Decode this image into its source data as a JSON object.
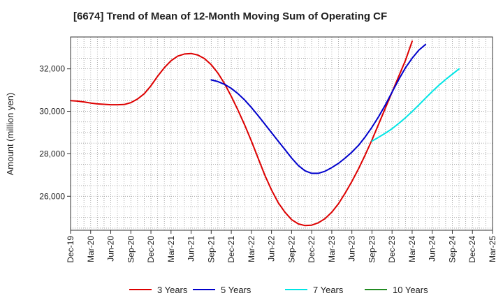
{
  "chart_data": {
    "type": "line",
    "title": "[6674]  Trend of Mean of 12-Month Moving Sum of Operating CF",
    "xlabel": "",
    "ylabel": "Amount (million yen)",
    "x_ticks": [
      "Dec-19",
      "Mar-20",
      "Jun-20",
      "Sep-20",
      "Dec-20",
      "Mar-21",
      "Jun-21",
      "Sep-21",
      "Dec-21",
      "Mar-22",
      "Jun-22",
      "Sep-22",
      "Dec-22",
      "Mar-23",
      "Jun-23",
      "Sep-23",
      "Dec-23",
      "Mar-24",
      "Jun-24",
      "Sep-24",
      "Dec-24",
      "Mar-25"
    ],
    "y_ticks": [
      26000,
      28000,
      30000,
      32000
    ],
    "y_tick_labels": [
      "26,000",
      "28,000",
      "30,000",
      "32,000"
    ],
    "ylim": [
      24400,
      33500
    ],
    "grid": true,
    "legend_position": "bottom",
    "series": [
      {
        "name": "3 Years",
        "color": "#dd0000",
        "start_index": 0,
        "values": [
          30500,
          30480,
          30440,
          30390,
          30350,
          30330,
          30310,
          30310,
          30320,
          30410,
          30580,
          30830,
          31200,
          31650,
          32050,
          32380,
          32600,
          32700,
          32720,
          32650,
          32480,
          32200,
          31800,
          31300,
          30700,
          30050,
          29350,
          28600,
          27800,
          27000,
          26300,
          25700,
          25250,
          24900,
          24700,
          24620,
          24640,
          24750,
          24950,
          25250,
          25650,
          26150,
          26700,
          27300,
          27950,
          28650,
          29400,
          30150,
          30900,
          31650,
          32400,
          33300
        ]
      },
      {
        "name": "5 Years",
        "color": "#0000cc",
        "start_index": 21,
        "values": [
          31480,
          31400,
          31270,
          31080,
          30830,
          30530,
          30180,
          29800,
          29400,
          29000,
          28600,
          28200,
          27800,
          27450,
          27200,
          27080,
          27080,
          27180,
          27350,
          27550,
          27800,
          28080,
          28400,
          28800,
          29250,
          29750,
          30300,
          30900,
          31500,
          32050,
          32500,
          32880,
          33150
        ]
      },
      {
        "name": "7 Years",
        "color": "#00e5e5",
        "start_index": 45,
        "values": [
          28600,
          28780,
          28970,
          29180,
          29430,
          29700,
          29990,
          30300,
          30620,
          30930,
          31230,
          31500,
          31750,
          32000
        ]
      },
      {
        "name": "10 Years",
        "color": "#228b22",
        "start_index": 0,
        "values": []
      }
    ]
  }
}
